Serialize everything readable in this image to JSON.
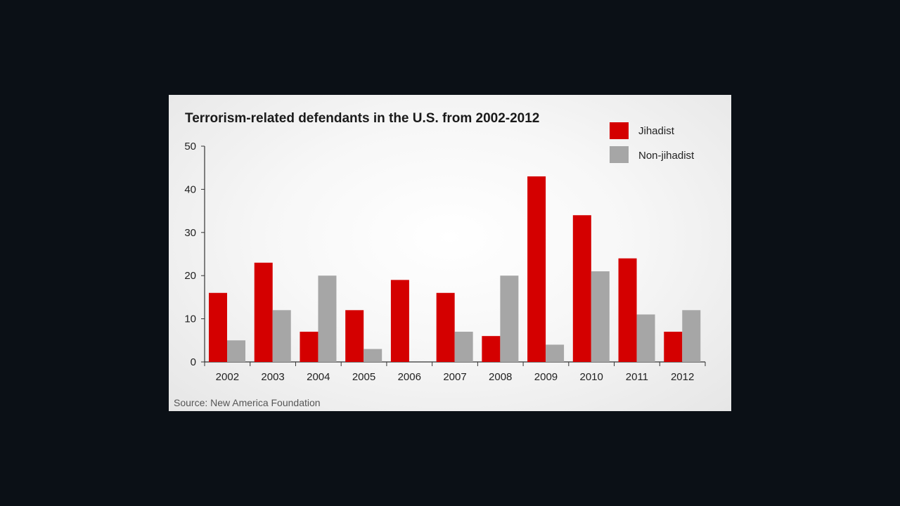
{
  "chart_data": {
    "type": "bar",
    "title": "Terrorism-related defendants in the U.S. from 2002-2012",
    "categories": [
      "2002",
      "2003",
      "2004",
      "2005",
      "2006",
      "2007",
      "2008",
      "2009",
      "2010",
      "2011",
      "2012"
    ],
    "series": [
      {
        "name": "Jihadist",
        "color": "#d40000",
        "values": [
          16,
          23,
          7,
          12,
          19,
          16,
          6,
          43,
          34,
          24,
          7
        ]
      },
      {
        "name": "Non-jihadist",
        "color": "#a6a6a6",
        "values": [
          5,
          12,
          20,
          3,
          0,
          7,
          20,
          4,
          21,
          11,
          12
        ]
      }
    ],
    "yticks": [
      "0",
      "10",
      "20",
      "30",
      "40",
      "50"
    ],
    "ylim": [
      0,
      50
    ],
    "xlabel": "",
    "ylabel": "",
    "legend_position": "top-right",
    "grid": false
  },
  "source": "Source: New America Foundation"
}
